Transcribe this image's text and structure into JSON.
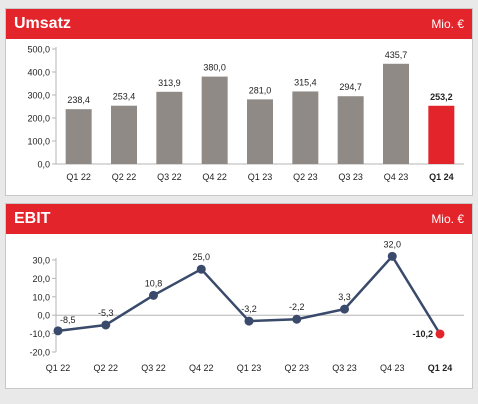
{
  "chart_data": [
    {
      "type": "bar",
      "title": "Umsatz",
      "unit": "Mio. €",
      "categories": [
        "Q1 22",
        "Q2 22",
        "Q3 22",
        "Q4 22",
        "Q1 23",
        "Q2 23",
        "Q3 23",
        "Q4 23",
        "Q1 24"
      ],
      "values": [
        238.4,
        253.4,
        313.9,
        380.0,
        281.0,
        315.4,
        294.7,
        435.7,
        253.2
      ],
      "value_labels": [
        "238,4",
        "253,4",
        "313,9",
        "380,0",
        "281,0",
        "315,4",
        "294,7",
        "435,7",
        "253,2"
      ],
      "ylim": [
        0,
        500
      ],
      "yticks": [
        0,
        100,
        200,
        300,
        400,
        500
      ],
      "ytick_labels": [
        "0,0",
        "100,0",
        "200,0",
        "300,0",
        "400,0",
        "500,0"
      ],
      "grid": false,
      "highlight_index": 8,
      "colors": {
        "bar": "#8f8a85",
        "highlight": "#e3242b",
        "axis": "#b5b5b5",
        "text": "#222222"
      }
    },
    {
      "type": "line",
      "title": "EBIT",
      "unit": "Mio. €",
      "categories": [
        "Q1 22",
        "Q2 22",
        "Q3 22",
        "Q4 22",
        "Q1 23",
        "Q2 23",
        "Q3 23",
        "Q4 23",
        "Q1 24"
      ],
      "values": [
        -8.5,
        -5.3,
        10.8,
        25.0,
        -3.2,
        -2.2,
        3.3,
        32.0,
        -10.2
      ],
      "value_labels": [
        "-8,5",
        "-5,3",
        "10,8",
        "25,0",
        "-3,2",
        "-2,2",
        "3,3",
        "32,0",
        "-10,2"
      ],
      "ylim": [
        -20,
        30
      ],
      "yticks": [
        -20,
        -10,
        0,
        10,
        20,
        30
      ],
      "ytick_labels": [
        "-20,0",
        "-10,0",
        "0,0",
        "10,0",
        "20,0",
        "30,0"
      ],
      "grid": false,
      "highlight_index": 8,
      "colors": {
        "line": "#3a4a6b",
        "point": "#3a4a6b",
        "highlight": "#e3242b",
        "axis": "#b5b5b5",
        "text": "#222222"
      }
    }
  ]
}
